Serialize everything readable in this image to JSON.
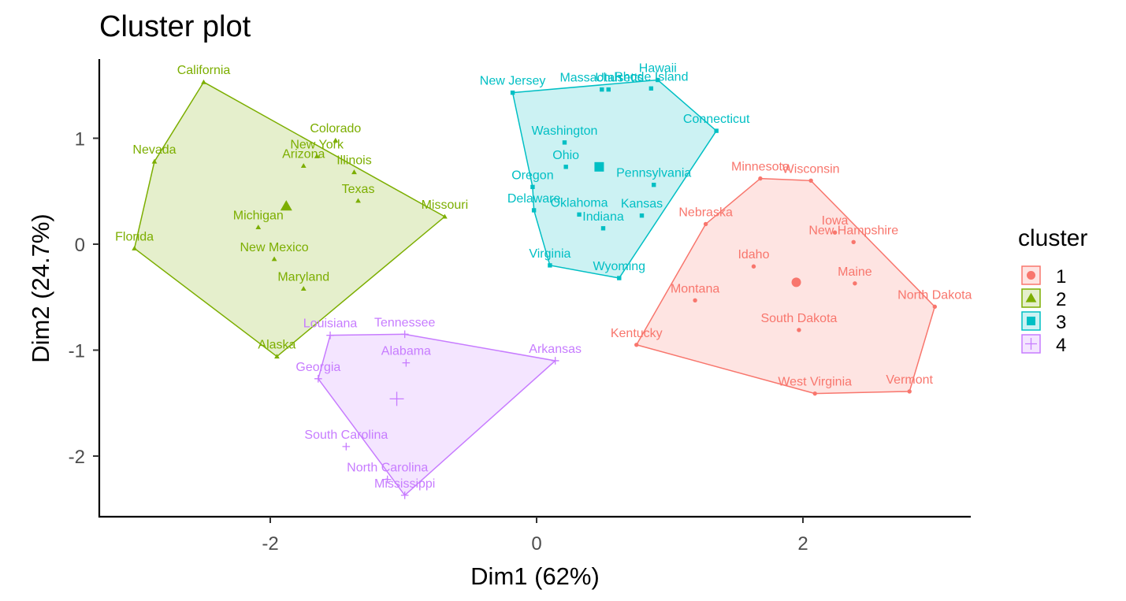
{
  "chart_data": {
    "type": "scatter",
    "title": "Cluster plot",
    "xlabel": "Dim1 (62%)",
    "ylabel": "Dim2 (24.7%)",
    "xlim": [
      -3.2,
      3.3
    ],
    "ylim": [
      -2.55,
      1.75
    ],
    "xticks": [
      -2,
      0,
      2
    ],
    "yticks": [
      -2,
      -1,
      0,
      1
    ],
    "grid": false,
    "legend": {
      "title": "cluster",
      "position": "right"
    },
    "series": [
      {
        "name": "1",
        "color": "#F8766D",
        "shape": "circle",
        "center": [
          1.95,
          -0.36
        ],
        "hull": [
          "North Dakota",
          "Wisconsin",
          "Minnesota",
          "Nebraska",
          "Kentucky",
          "West Virginia",
          "Vermont"
        ],
        "points": [
          {
            "label": "Minnesota",
            "x": 1.68,
            "y": 0.62
          },
          {
            "label": "Wisconsin",
            "x": 2.06,
            "y": 0.6
          },
          {
            "label": "Nebraska",
            "x": 1.27,
            "y": 0.19
          },
          {
            "label": "Iowa",
            "x": 2.24,
            "y": 0.11
          },
          {
            "label": "New Hampshire",
            "x": 2.38,
            "y": 0.02
          },
          {
            "label": "Idaho",
            "x": 1.63,
            "y": -0.21
          },
          {
            "label": "Maine",
            "x": 2.39,
            "y": -0.37
          },
          {
            "label": "Montana",
            "x": 1.19,
            "y": -0.53
          },
          {
            "label": "North Dakota",
            "x": 2.99,
            "y": -0.59
          },
          {
            "label": "South Dakota",
            "x": 1.97,
            "y": -0.81
          },
          {
            "label": "Kentucky",
            "x": 0.75,
            "y": -0.95
          },
          {
            "label": "West Virginia",
            "x": 2.09,
            "y": -1.41
          },
          {
            "label": "Vermont",
            "x": 2.8,
            "y": -1.39
          }
        ]
      },
      {
        "name": "2",
        "color": "#7CAE00",
        "shape": "triangle",
        "center": [
          -1.88,
          0.36
        ],
        "hull": [
          "California",
          "Missouri",
          "Alaska",
          "Florida",
          "Nevada"
        ],
        "points": [
          {
            "label": "California",
            "x": -2.5,
            "y": 1.53
          },
          {
            "label": "Colorado",
            "x": -1.51,
            "y": 0.98
          },
          {
            "label": "Nevada",
            "x": -2.87,
            "y": 0.78
          },
          {
            "label": "New York",
            "x": -1.65,
            "y": 0.83
          },
          {
            "label": "Arizona",
            "x": -1.75,
            "y": 0.74
          },
          {
            "label": "Illinois",
            "x": -1.37,
            "y": 0.68
          },
          {
            "label": "Texas",
            "x": -1.34,
            "y": 0.41
          },
          {
            "label": "Missouri",
            "x": -0.69,
            "y": 0.26
          },
          {
            "label": "Michigan",
            "x": -2.09,
            "y": 0.16
          },
          {
            "label": "Florida",
            "x": -3.02,
            "y": -0.04
          },
          {
            "label": "New Mexico",
            "x": -1.97,
            "y": -0.14
          },
          {
            "label": "Maryland",
            "x": -1.75,
            "y": -0.42
          },
          {
            "label": "Alaska",
            "x": -1.95,
            "y": -1.06
          }
        ]
      },
      {
        "name": "3",
        "color": "#00BFC4",
        "shape": "square",
        "center": [
          0.47,
          0.73
        ],
        "hull": [
          "New Jersey",
          "Hawaii",
          "Connecticut",
          "Wyoming",
          "Virginia",
          "Delaware",
          "Oregon"
        ],
        "points": [
          {
            "label": "New Jersey",
            "x": -0.18,
            "y": 1.43
          },
          {
            "label": "Massachusetts",
            "x": 0.49,
            "y": 1.46
          },
          {
            "label": "Utah",
            "x": 0.54,
            "y": 1.46
          },
          {
            "label": "Rhode Island",
            "x": 0.86,
            "y": 1.47
          },
          {
            "label": "Hawaii",
            "x": 0.91,
            "y": 1.55
          },
          {
            "label": "Connecticut",
            "x": 1.35,
            "y": 1.07
          },
          {
            "label": "Washington",
            "x": 0.21,
            "y": 0.96
          },
          {
            "label": "Ohio",
            "x": 0.22,
            "y": 0.73
          },
          {
            "label": "Pennsylvania",
            "x": 0.88,
            "y": 0.56
          },
          {
            "label": "Oregon",
            "x": -0.03,
            "y": 0.54
          },
          {
            "label": "Delaware",
            "x": -0.02,
            "y": 0.32
          },
          {
            "label": "Oklahoma",
            "x": 0.32,
            "y": 0.28
          },
          {
            "label": "Kansas",
            "x": 0.79,
            "y": 0.27
          },
          {
            "label": "Indiana",
            "x": 0.5,
            "y": 0.15
          },
          {
            "label": "Virginia",
            "x": 0.1,
            "y": -0.2
          },
          {
            "label": "Wyoming",
            "x": 0.62,
            "y": -0.32
          }
        ]
      },
      {
        "name": "4",
        "color": "#C77CFF",
        "shape": "cross",
        "center": [
          -1.05,
          -1.46
        ],
        "hull": [
          "Louisiana",
          "Tennessee",
          "Arkansas",
          "Mississippi",
          "Georgia"
        ],
        "points": [
          {
            "label": "Louisiana",
            "x": -1.55,
            "y": -0.86
          },
          {
            "label": "Tennessee",
            "x": -0.99,
            "y": -0.85
          },
          {
            "label": "Alabama",
            "x": -0.98,
            "y": -1.12
          },
          {
            "label": "Arkansas",
            "x": 0.14,
            "y": -1.1
          },
          {
            "label": "Georgia",
            "x": -1.64,
            "y": -1.27
          },
          {
            "label": "South Carolina",
            "x": -1.43,
            "y": -1.91
          },
          {
            "label": "North Carolina",
            "x": -1.12,
            "y": -2.22
          },
          {
            "label": "Mississippi",
            "x": -0.99,
            "y": -2.37
          }
        ]
      }
    ]
  }
}
